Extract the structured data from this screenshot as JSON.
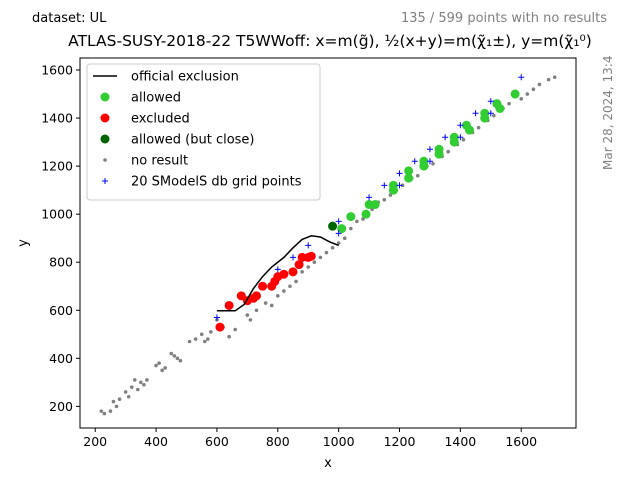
{
  "header": {
    "dataset": "dataset: UL",
    "no_results": "135 / 599 points with no results",
    "timestamp": "Mar 28, 2024, 13:4"
  },
  "chart_data": {
    "type": "scatter",
    "title": "ATLAS-SUSY-2018-22 T5WWoff: x=m(g̃), ½(x+y)=m(χ̃₁±), y=m(χ̃₁⁰)",
    "xlabel": "x",
    "ylabel": "y",
    "xlim": [
      150,
      1780
    ],
    "ylim": [
      110,
      1650
    ],
    "xticks": [
      200,
      400,
      600,
      800,
      1000,
      1200,
      1400,
      1600
    ],
    "yticks": [
      200,
      400,
      600,
      800,
      1000,
      1200,
      1400,
      1600
    ],
    "grid": false,
    "legend_position": "top-left",
    "colors": {
      "official_exclusion": "#000000",
      "allowed": "#32cd32",
      "excluded": "#ff0000",
      "allowed_close": "#006400",
      "no_result": "#808080",
      "grid_points": "#0000ff"
    },
    "legend": [
      {
        "label": "official exclusion",
        "marker": "line",
        "color": "#000000"
      },
      {
        "label": "allowed",
        "marker": "dot",
        "color": "#32cd32"
      },
      {
        "label": "excluded",
        "marker": "dot",
        "color": "#ff0000"
      },
      {
        "label": "allowed (but close)",
        "marker": "dot",
        "color": "#006400"
      },
      {
        "label": "no result",
        "marker": "small-dot",
        "color": "#808080"
      },
      {
        "label": "20 SModelS db grid points",
        "marker": "plus",
        "color": "#0000ff"
      }
    ],
    "series": [
      {
        "name": "official exclusion",
        "type": "line",
        "x": [
          600,
          660,
          690,
          720,
          750,
          780,
          820,
          850,
          880,
          910,
          940,
          970,
          1000
        ],
        "y": [
          598,
          598,
          625,
          690,
          740,
          780,
          820,
          860,
          895,
          910,
          905,
          885,
          870
        ]
      },
      {
        "name": "allowed",
        "type": "scatter",
        "x": [
          1010,
          1040,
          1090,
          1100,
          1120,
          1180,
          1180,
          1230,
          1230,
          1280,
          1280,
          1330,
          1330,
          1380,
          1380,
          1420,
          1430,
          1480,
          1480,
          1520,
          1530,
          1580
        ],
        "y": [
          940,
          990,
          1000,
          1040,
          1040,
          1120,
          1100,
          1180,
          1150,
          1220,
          1200,
          1270,
          1250,
          1320,
          1300,
          1370,
          1350,
          1420,
          1400,
          1460,
          1440,
          1500
        ]
      },
      {
        "name": "excluded",
        "type": "scatter",
        "x": [
          610,
          640,
          680,
          700,
          720,
          730,
          750,
          780,
          790,
          800,
          820,
          850,
          870,
          880,
          900,
          910
        ],
        "y": [
          530,
          620,
          660,
          640,
          650,
          660,
          700,
          700,
          720,
          740,
          750,
          760,
          790,
          820,
          820,
          825
        ]
      },
      {
        "name": "allowed (but close)",
        "type": "scatter",
        "x": [
          980
        ],
        "y": [
          950
        ]
      },
      {
        "name": "no result",
        "type": "scatter",
        "x": [
          220,
          230,
          250,
          260,
          270,
          280,
          300,
          310,
          320,
          330,
          340,
          350,
          360,
          370,
          400,
          410,
          420,
          430,
          450,
          460,
          470,
          480,
          510,
          530,
          550,
          560,
          570,
          580,
          600,
          620,
          640,
          660,
          700,
          710,
          730,
          760,
          780,
          800,
          820,
          840,
          860,
          880,
          900,
          920,
          940,
          960,
          980,
          1000,
          1020,
          1040,
          1060,
          1080,
          1110,
          1130,
          1150,
          1170,
          1190,
          1210,
          1240,
          1260,
          1290,
          1310,
          1340,
          1360,
          1390,
          1410,
          1440,
          1460,
          1490,
          1510,
          1540,
          1560,
          1600,
          1620,
          1640,
          1660,
          1690,
          1710
        ],
        "y": [
          180,
          170,
          180,
          220,
          200,
          230,
          260,
          240,
          280,
          310,
          270,
          300,
          290,
          310,
          370,
          380,
          350,
          360,
          420,
          410,
          400,
          390,
          470,
          480,
          500,
          470,
          480,
          510,
          560,
          530,
          490,
          520,
          580,
          560,
          600,
          630,
          620,
          660,
          680,
          700,
          720,
          760,
          780,
          800,
          820,
          840,
          860,
          880,
          900,
          940,
          970,
          980,
          1020,
          1050,
          1060,
          1080,
          1100,
          1120,
          1150,
          1160,
          1200,
          1210,
          1240,
          1260,
          1290,
          1310,
          1340,
          1360,
          1390,
          1410,
          1440,
          1460,
          1480,
          1500,
          1520,
          1540,
          1560,
          1570
        ]
      },
      {
        "name": "20 SModelS db grid points",
        "type": "scatter",
        "x": [
          600,
          800,
          850,
          900,
          1000,
          1000,
          1100,
          1150,
          1200,
          1200,
          1250,
          1300,
          1300,
          1350,
          1400,
          1400,
          1450,
          1500,
          1500,
          1600
        ],
        "y": [
          570,
          770,
          820,
          870,
          920,
          970,
          1070,
          1120,
          1120,
          1170,
          1220,
          1220,
          1270,
          1320,
          1320,
          1370,
          1420,
          1420,
          1470,
          1570
        ]
      }
    ]
  }
}
